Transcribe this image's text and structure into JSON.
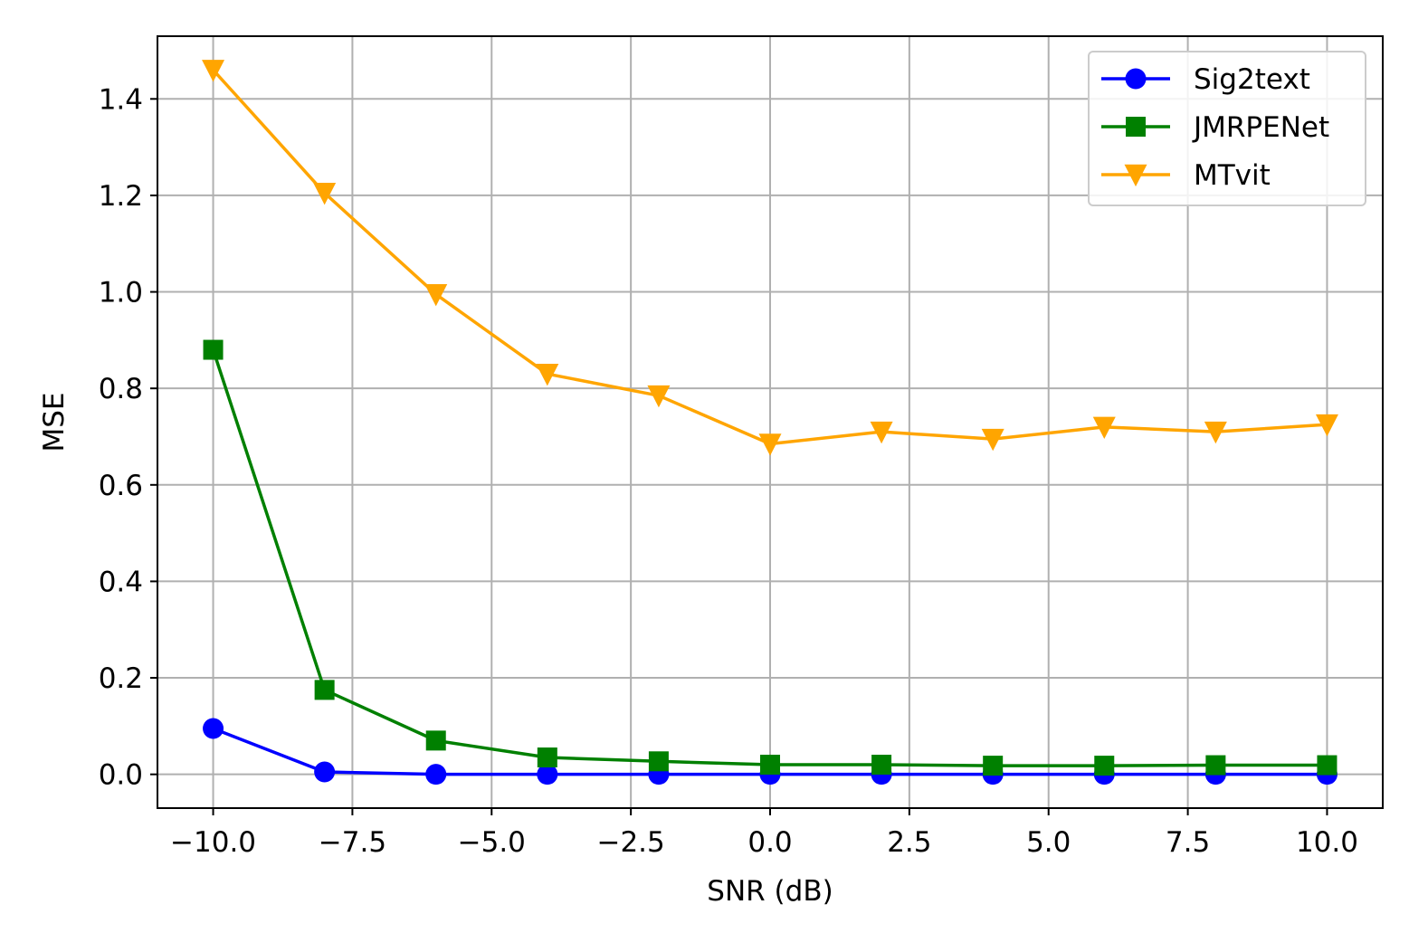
{
  "chart_data": {
    "type": "line",
    "xlabel": "SNR (dB)",
    "ylabel": "MSE",
    "xlim": [
      -11.0,
      11.0
    ],
    "ylim": [
      -0.07,
      1.53
    ],
    "grid": true,
    "legend_position": "top-right",
    "x_ticks": [
      -10.0,
      -7.5,
      -5.0,
      -2.5,
      0.0,
      2.5,
      5.0,
      7.5,
      10.0
    ],
    "x_tick_labels": [
      "−10.0",
      "−7.5",
      "−5.0",
      "−2.5",
      "0.0",
      "2.5",
      "5.0",
      "7.5",
      "10.0"
    ],
    "y_ticks": [
      0.0,
      0.2,
      0.4,
      0.6,
      0.8,
      1.0,
      1.2,
      1.4
    ],
    "y_tick_labels": [
      "0.0",
      "0.2",
      "0.4",
      "0.6",
      "0.8",
      "1.0",
      "1.2",
      "1.4"
    ],
    "x": [
      -10,
      -8,
      -6,
      -4,
      -2,
      0,
      2,
      4,
      6,
      8,
      10
    ],
    "series": [
      {
        "name": "Sig2text",
        "color": "#0000ff",
        "marker": "circle",
        "values": [
          0.095,
          0.005,
          0.0,
          0.0,
          0.0,
          0.0,
          0.0,
          0.0,
          0.0,
          0.0,
          0.0
        ]
      },
      {
        "name": "JMRPENet",
        "color": "#008000",
        "marker": "square",
        "values": [
          0.88,
          0.175,
          0.07,
          0.035,
          0.027,
          0.02,
          0.02,
          0.018,
          0.018,
          0.019,
          0.019
        ]
      },
      {
        "name": "MTvit",
        "color": "#ffa500",
        "marker": "triangle-down",
        "values": [
          1.46,
          1.205,
          0.995,
          0.83,
          0.785,
          0.685,
          0.71,
          0.695,
          0.72,
          0.71,
          0.725
        ]
      }
    ]
  }
}
